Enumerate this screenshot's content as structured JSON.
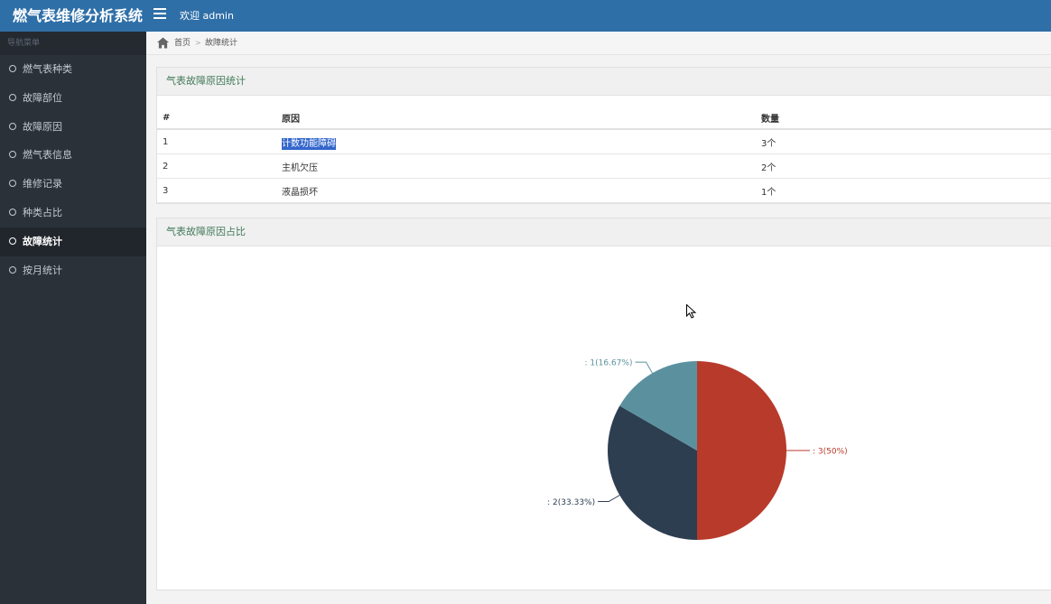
{
  "app": {
    "title": "燃气表维修分析系统",
    "welcome": "欢迎 admin"
  },
  "sidebar": {
    "header": "导航菜单",
    "items": [
      {
        "label": "燃气表种类",
        "active": false
      },
      {
        "label": "故障部位",
        "active": false
      },
      {
        "label": "故障原因",
        "active": false
      },
      {
        "label": "燃气表信息",
        "active": false
      },
      {
        "label": "维修记录",
        "active": false
      },
      {
        "label": "种类占比",
        "active": false
      },
      {
        "label": "故障统计",
        "active": true
      },
      {
        "label": "按月统计",
        "active": false
      }
    ]
  },
  "breadcrumb": {
    "home": "首页",
    "current": "故障统计"
  },
  "table_panel": {
    "title": "气表故障原因统计",
    "headers": [
      "#",
      "原因",
      "数量"
    ],
    "rows": [
      [
        "1",
        "计数功能障碍",
        "3个"
      ],
      [
        "2",
        "主机欠压",
        "2个"
      ],
      [
        "3",
        "液晶损坏",
        "1个"
      ]
    ]
  },
  "chart_panel": {
    "title": "气表故障原因占比",
    "chart_data": {
      "type": "pie",
      "slices": [
        {
          "value": 3,
          "label": ": 3(50%)",
          "color": "#b83a2b"
        },
        {
          "value": 2,
          "label": ": 2(33.33%)",
          "color": "#2d3e50"
        },
        {
          "value": 1,
          "label": ": 1(16.67%)",
          "color": "#5b919f"
        }
      ]
    }
  }
}
